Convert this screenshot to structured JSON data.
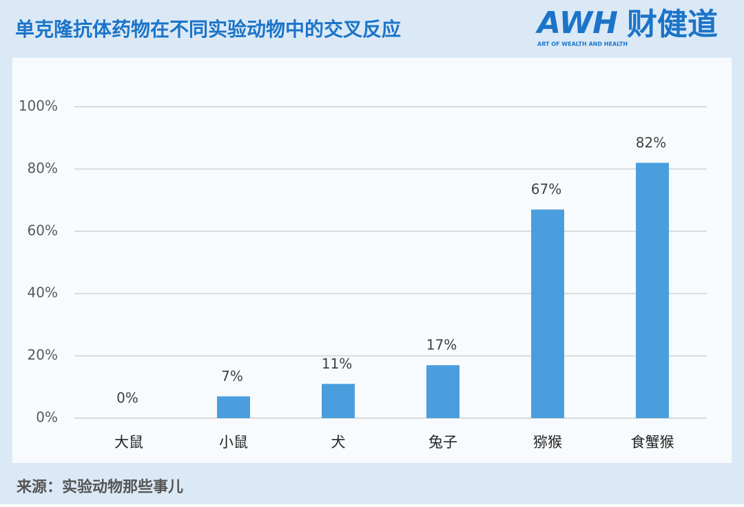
{
  "chart_data": {
    "type": "bar",
    "title": "单克隆抗体药物在不同实验动物中的交叉反应",
    "categories": [
      "大鼠",
      "小鼠",
      "犬",
      "兔子",
      "猕猴",
      "食蟹猴"
    ],
    "values": [
      0,
      7,
      11,
      17,
      67,
      82
    ],
    "value_labels": [
      "0%",
      "7%",
      "11%",
      "17%",
      "67%",
      "82%"
    ],
    "color": "#4a9ede",
    "ylim": [
      0,
      100
    ],
    "yticks": [
      {
        "value": 0,
        "label": "0%"
      },
      {
        "value": 20,
        "label": "20%"
      },
      {
        "value": 40,
        "label": "40%"
      },
      {
        "value": 60,
        "label": "60%"
      },
      {
        "value": 80,
        "label": "80%"
      },
      {
        "value": 100,
        "label": "100%"
      }
    ],
    "grid": true
  },
  "source": "来源：实验动物那些事儿",
  "brand": {
    "name": "AWH",
    "cn": "财健道",
    "tagline": "ART OF WEALTH AND HEALTH"
  }
}
